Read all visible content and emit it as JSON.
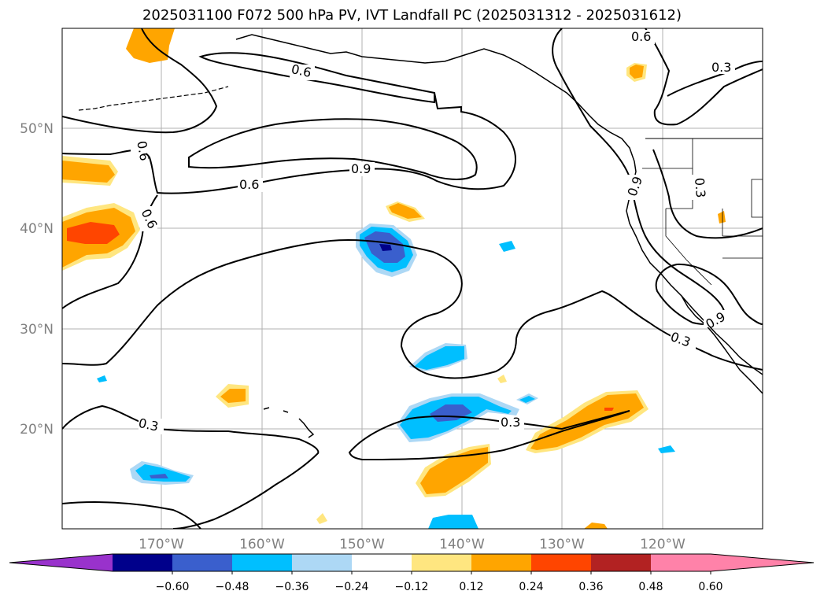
{
  "title": "2025031100 F072 500 hPa PV, IVT Landfall PC (2025031312 - 2025031612)",
  "map": {
    "lat_labels": [
      "50°N",
      "40°N",
      "30°N",
      "20°N"
    ],
    "lon_labels": [
      "170°W",
      "160°W",
      "150°W",
      "140°W",
      "130°W",
      "120°W"
    ],
    "contour_labels": [
      "0.6",
      "0.6",
      "0.3",
      "0.9",
      "0.6",
      "0.6",
      "0.6",
      "0.9",
      "0.3",
      "0.9",
      "0.3",
      "0.3",
      "0.3"
    ],
    "colors": {
      "land_lines": "#000000",
      "grid": "#b0b0b0",
      "pos_light": "#ffe680",
      "pos_mid": "#ffa500",
      "pos_strong": "#ff4500",
      "neg_light": "#add8f5",
      "neg_mid": "#00bfff",
      "neg_strong": "#3a5fcd",
      "neg_deep": "#00008b"
    }
  },
  "colorbar": {
    "ticks": [
      "−0.60",
      "−0.48",
      "−0.36",
      "−0.24",
      "−0.12",
      "0.12",
      "0.24",
      "0.36",
      "0.48",
      "0.60"
    ],
    "colors": [
      "#9932cc",
      "#00008b",
      "#3a5fcd",
      "#00bfff",
      "#add8f5",
      "#ffffff",
      "#ffe680",
      "#ffa500",
      "#ff4500",
      "#b22222",
      "#ff82a9",
      "#ff82a9"
    ]
  }
}
